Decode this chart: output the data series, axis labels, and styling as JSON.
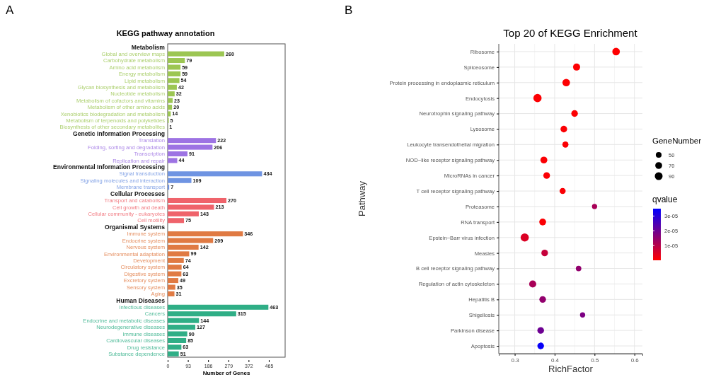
{
  "chart_data": [
    {
      "type": "bar",
      "orientation": "horizontal",
      "title": "KEGG pathway annotation",
      "xlabel": "Number of Genes",
      "annotations": [
        "A"
      ],
      "categories": [
        "Metabolism",
        "Global and overview maps",
        "Carbohydrate metabolism",
        "Amino acid metabolism",
        "Energy metabolism",
        "Lipid metabolism",
        "Glycan biosynthesis and metabolism",
        "Nucleotide metabolism",
        "Metabolism of cofactors and vitamins",
        "Metabolism of other amino acids",
        "Xenobiotics biodegradation and metabolism",
        "Metabolism of terpenoids and polyketides",
        "Biosynthesis of other secondary metabolites",
        "Genetic Information Processing",
        "Translation",
        "Folding, sorting and degradation",
        "Transcription",
        "Replication and repair",
        "Environmental Information Processing",
        "Signal transduction",
        "Signaling molecules and interaction",
        "Membrane transport",
        "Cellular Processes",
        "Transport and catabolism",
        "Cell growth and death",
        "Cellular community - eukaryotes",
        "Cell motility",
        "Organismal Systems",
        "Immune system",
        "Endocrine system",
        "Nervous system",
        "Environmental adaptation",
        "Development",
        "Circulatory system",
        "Digestive system",
        "Excretory system",
        "Sensory system",
        "Aging",
        "Human Diseases",
        "Infectious diseases",
        "Cancers",
        "Endocrine and metabolic diseases",
        "Neurodegenerative diseases",
        "Immune diseases",
        "Cardiovascular diseases",
        "Drug resistance",
        "Substance dependence"
      ],
      "series": [
        {
          "color": "#9cc653",
          "values": [
            null,
            260,
            79,
            59,
            59,
            54,
            42,
            32,
            23,
            20,
            14,
            5,
            1,
            null,
            null,
            null,
            null,
            null,
            null,
            null,
            null,
            null,
            null,
            null,
            null,
            null,
            null,
            null,
            null,
            null,
            null,
            null,
            null,
            null,
            null,
            null,
            null,
            null,
            null,
            null,
            null,
            null,
            null,
            null,
            null,
            null,
            null
          ]
        },
        {
          "color": "#9d73e3",
          "values": [
            null,
            null,
            null,
            null,
            null,
            null,
            null,
            null,
            null,
            null,
            null,
            null,
            null,
            null,
            222,
            206,
            91,
            44,
            null,
            null,
            null,
            null,
            null,
            null,
            null,
            null,
            null,
            null,
            null,
            null,
            null,
            null,
            null,
            null,
            null,
            null,
            null,
            null,
            null,
            null,
            null,
            null,
            null,
            null,
            null,
            null,
            null
          ]
        },
        {
          "color": "#6f94e2",
          "values": [
            null,
            null,
            null,
            null,
            null,
            null,
            null,
            null,
            null,
            null,
            null,
            null,
            null,
            null,
            null,
            null,
            null,
            null,
            null,
            434,
            109,
            7,
            null,
            null,
            null,
            null,
            null,
            null,
            null,
            null,
            null,
            null,
            null,
            null,
            null,
            null,
            null,
            null,
            null,
            null,
            null,
            null,
            null,
            null,
            null,
            null,
            null
          ]
        },
        {
          "color": "#ef636b",
          "values": [
            null,
            null,
            null,
            null,
            null,
            null,
            null,
            null,
            null,
            null,
            null,
            null,
            null,
            null,
            null,
            null,
            null,
            null,
            null,
            null,
            null,
            null,
            null,
            270,
            213,
            143,
            75,
            null,
            null,
            null,
            null,
            null,
            null,
            null,
            null,
            null,
            null,
            null,
            null,
            null,
            null,
            null,
            null,
            null,
            null,
            null,
            null
          ]
        },
        {
          "color": "#e07a43",
          "values": [
            null,
            null,
            null,
            null,
            null,
            null,
            null,
            null,
            null,
            null,
            null,
            null,
            null,
            null,
            null,
            null,
            null,
            null,
            null,
            null,
            null,
            null,
            null,
            null,
            null,
            null,
            null,
            null,
            346,
            209,
            142,
            99,
            74,
            64,
            63,
            49,
            35,
            31,
            null,
            null,
            null,
            null,
            null,
            null,
            null,
            null,
            null
          ]
        },
        {
          "color": "#2fae86",
          "values": [
            null,
            null,
            null,
            null,
            null,
            null,
            null,
            null,
            null,
            null,
            null,
            null,
            null,
            null,
            null,
            null,
            null,
            null,
            null,
            null,
            null,
            null,
            null,
            null,
            null,
            null,
            null,
            null,
            null,
            null,
            null,
            null,
            null,
            null,
            null,
            null,
            null,
            null,
            null,
            463,
            315,
            144,
            127,
            90,
            85,
            63,
            51
          ]
        }
      ],
      "xlim": [
        0,
        540
      ],
      "xticks": [
        0,
        93,
        186,
        279,
        372,
        465
      ],
      "data_labels": true
    },
    {
      "type": "bubble",
      "orientation": "horizontal",
      "title": "Top 20 of KEGG Enrichment",
      "xlabel": "RichFactor",
      "ylabel": "Pathway",
      "annotations": [
        "B"
      ],
      "categories": [
        "Ribosome",
        "Spliceosome",
        "Protein processing in endoplasmic reticulum",
        "Endocytosis",
        "Neurotrophin signaling pathway",
        "Lysosome",
        "Leukocyte transendothelial migration",
        "NOD−like receptor signaling pathway",
        "MicroRNAs in cancer",
        "T cell receptor signaling pathway",
        "Proteasome",
        "RNA transport",
        "Epstein−Barr virus infection",
        "Measles",
        "B cell receptor signaling pathway",
        "Regulation of actin cytoskeleton",
        "Hepatitis B",
        "Shigellosis",
        "Parkinson disease",
        "Apoptosis"
      ],
      "values": [
        0.554,
        0.455,
        0.429,
        0.357,
        0.45,
        0.423,
        0.427,
        0.373,
        0.38,
        0.42,
        0.5,
        0.37,
        0.325,
        0.375,
        0.46,
        0.345,
        0.37,
        0.47,
        0.365,
        0.365
      ],
      "sizes": [
        85,
        75,
        85,
        100,
        65,
        65,
        55,
        70,
        65,
        55,
        40,
        70,
        100,
        65,
        45,
        75,
        65,
        40,
        65,
        65
      ],
      "cvalues": [
        2e-07,
        3e-07,
        3e-07,
        4e-07,
        4e-07,
        5e-07,
        5e-07,
        5e-07,
        6e-07,
        7e-07,
        1.2e-05,
        6e-07,
        5e-06,
        8e-06,
        1.5e-05,
        1.2e-05,
        1.5e-05,
        1.8e-05,
        2e-05,
        3.4e-05
      ],
      "size_legend": [
        50,
        70,
        90
      ],
      "legend_title": "GeneNumber",
      "clabel": "qvalue",
      "clim": [
        0,
        3.5e-05
      ],
      "cticks": [
        {
          "value": 1e-05,
          "label": "1e-05"
        },
        {
          "value": 2e-05,
          "label": "2e-05"
        },
        {
          "value": 3e-05,
          "label": "3e-05"
        }
      ],
      "xlim": [
        0.26,
        0.62
      ],
      "xticks": [
        0.3,
        0.4,
        0.5,
        0.6
      ],
      "grid": true
    }
  ]
}
